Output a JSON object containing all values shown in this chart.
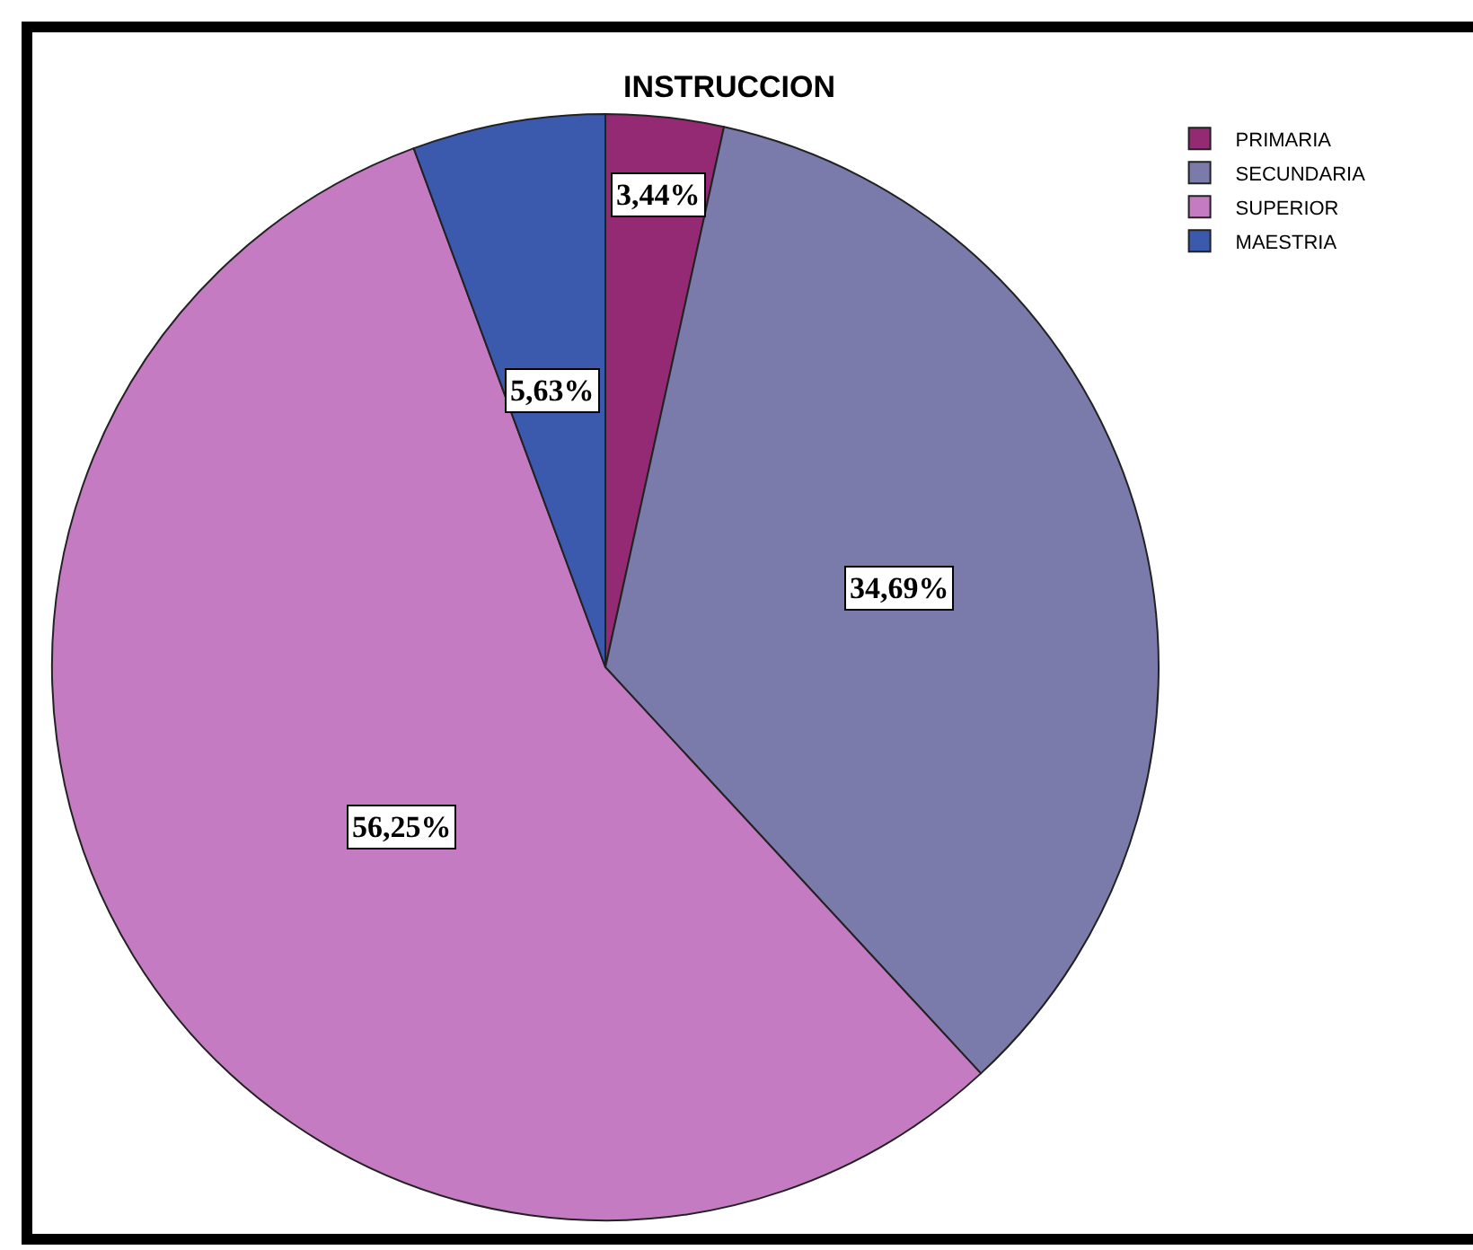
{
  "chart_data": {
    "type": "pie",
    "title": "INSTRUCCION",
    "categories": [
      "PRIMARIA",
      "SECUNDARIA",
      "SUPERIOR",
      "MAESTRIA"
    ],
    "values": [
      3.44,
      34.69,
      56.25,
      5.63
    ],
    "value_labels": [
      "3,44%",
      "34,69%",
      "56,25%",
      "5,63%"
    ],
    "colors": [
      "#942a73",
      "#7a7aab",
      "#c57bc2",
      "#3c5aad"
    ],
    "legend": "top right"
  }
}
